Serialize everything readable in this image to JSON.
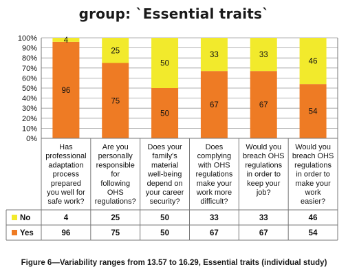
{
  "title": "group: `Essential traits`",
  "caption": "Figure 6—Variability ranges from 13.57 to 16.29, Essential traits (individual study)",
  "colors": {
    "no": "#f2ea2c",
    "yes": "#ee7b24",
    "grid": "#999999",
    "border": "#777777"
  },
  "chart_data": {
    "type": "bar",
    "stacked": true,
    "percent": true,
    "title": "group: `Essential traits`",
    "categories": [
      [
        "Has",
        "professional",
        "adaptation",
        "process",
        "prepared",
        "you well for",
        "safe work?"
      ],
      [
        "Are you",
        "personally",
        "responsible",
        "for",
        "following",
        "OHS",
        "regulations?"
      ],
      [
        "Does your",
        "family's",
        "material",
        "well-being",
        "depend on",
        "your career",
        "security?"
      ],
      [
        "Does",
        "complying",
        "with OHS",
        "regulations",
        "make your",
        "work more",
        "difficult?"
      ],
      [
        "Would you",
        "breach OHS",
        "regulations",
        "in order to",
        "keep your",
        "job?"
      ],
      [
        "Would you",
        "breach OHS",
        "regulations",
        "in order to",
        "make your",
        "work",
        "easier?"
      ]
    ],
    "series": [
      {
        "name": "Yes",
        "values": [
          96,
          75,
          50,
          67,
          67,
          54
        ]
      },
      {
        "name": "No",
        "values": [
          4,
          25,
          50,
          33,
          33,
          46
        ]
      }
    ],
    "yticks": [
      "0%",
      "10%",
      "20%",
      "30%",
      "40%",
      "50%",
      "60%",
      "70%",
      "80%",
      "90%",
      "100%"
    ],
    "ylim": [
      0,
      100
    ],
    "grid": true,
    "legend": "data-table"
  }
}
